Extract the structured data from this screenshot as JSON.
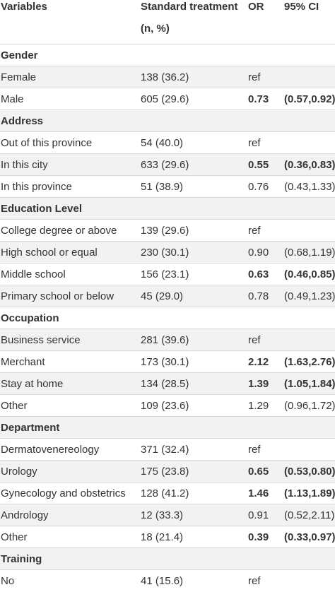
{
  "headers": {
    "variables": "Variables",
    "standard_line1": "Standard treatment",
    "standard_line2": "(n, %)",
    "or": "OR",
    "ci": "95% CI"
  },
  "rows": [
    {
      "kind": "group",
      "label": "Gender"
    },
    {
      "kind": "row",
      "label": "Female",
      "n": "138 (36.2)",
      "or": "ref",
      "ci": "",
      "bold": false
    },
    {
      "kind": "row",
      "label": "Male",
      "n": "605 (29.6)",
      "or": "0.73",
      "ci": "(0.57,0.92)",
      "bold": true
    },
    {
      "kind": "group",
      "label": "Address"
    },
    {
      "kind": "row",
      "label": "Out of this province",
      "n": "54 (40.0)",
      "or": "ref",
      "ci": "",
      "bold": false
    },
    {
      "kind": "row",
      "label": "In this city",
      "n": "633 (29.6)",
      "or": "0.55",
      "ci": "(0.36,0.83)",
      "bold": true
    },
    {
      "kind": "row",
      "label": "In this province",
      "n": "51 (38.9)",
      "or": "0.76",
      "ci": "(0.43,1.33)",
      "bold": false
    },
    {
      "kind": "group",
      "label": "Education Level"
    },
    {
      "kind": "row",
      "label": "College degree or above",
      "n": "139 (29.6)",
      "or": "ref",
      "ci": "",
      "bold": false
    },
    {
      "kind": "row",
      "label": "High school or equal",
      "n": "230 (30.1)",
      "or": "0.90",
      "ci": "(0.68,1.19)",
      "bold": false
    },
    {
      "kind": "row",
      "label": "Middle school",
      "n": "156 (23.1)",
      "or": "0.63",
      "ci": "(0.46,0.85)",
      "bold": true
    },
    {
      "kind": "row",
      "label": "Primary school or below",
      "n": "45 (29.0)",
      "or": "0.78",
      "ci": "(0.49,1.23)",
      "bold": false
    },
    {
      "kind": "group",
      "label": "Occupation"
    },
    {
      "kind": "row",
      "label": "Business service",
      "n": "281 (39.6)",
      "or": "ref",
      "ci": "",
      "bold": false
    },
    {
      "kind": "row",
      "label": "Merchant",
      "n": "173 (30.1)",
      "or": "2.12",
      "ci": "(1.63,2.76)",
      "bold": true
    },
    {
      "kind": "row",
      "label": "Stay at home",
      "n": "134 (28.5)",
      "or": "1.39",
      "ci": "(1.05,1.84)",
      "bold": true
    },
    {
      "kind": "row",
      "label": "Other",
      "n": "109 (23.6)",
      "or": "1.29",
      "ci": "(0.96,1.72)",
      "bold": false
    },
    {
      "kind": "group",
      "label": "Department"
    },
    {
      "kind": "row",
      "label": "Dermatovenereology",
      "n": "371 (32.4)",
      "or": "ref",
      "ci": "",
      "bold": false
    },
    {
      "kind": "row",
      "label": "Urology",
      "n": "175 (23.8)",
      "or": "0.65",
      "ci": "(0.53,0.80)",
      "bold": true
    },
    {
      "kind": "row",
      "label": "Gynecology and obstetrics",
      "n": "128 (41.2)",
      "or": "1.46",
      "ci": "(1.13,1.89)",
      "bold": true
    },
    {
      "kind": "row",
      "label": "Andrology",
      "n": "12 (33.3)",
      "or": "0.91",
      "ci": "(0.52,2.11)",
      "bold": false
    },
    {
      "kind": "row",
      "label": "Other",
      "n": "18 (21.4)",
      "or": "0.39",
      "ci": "(0.33,0.97)",
      "bold": true
    },
    {
      "kind": "group",
      "label": "Training"
    },
    {
      "kind": "row",
      "label": "No",
      "n": "41 (15.6)",
      "or": "ref",
      "ci": "",
      "bold": false
    }
  ]
}
